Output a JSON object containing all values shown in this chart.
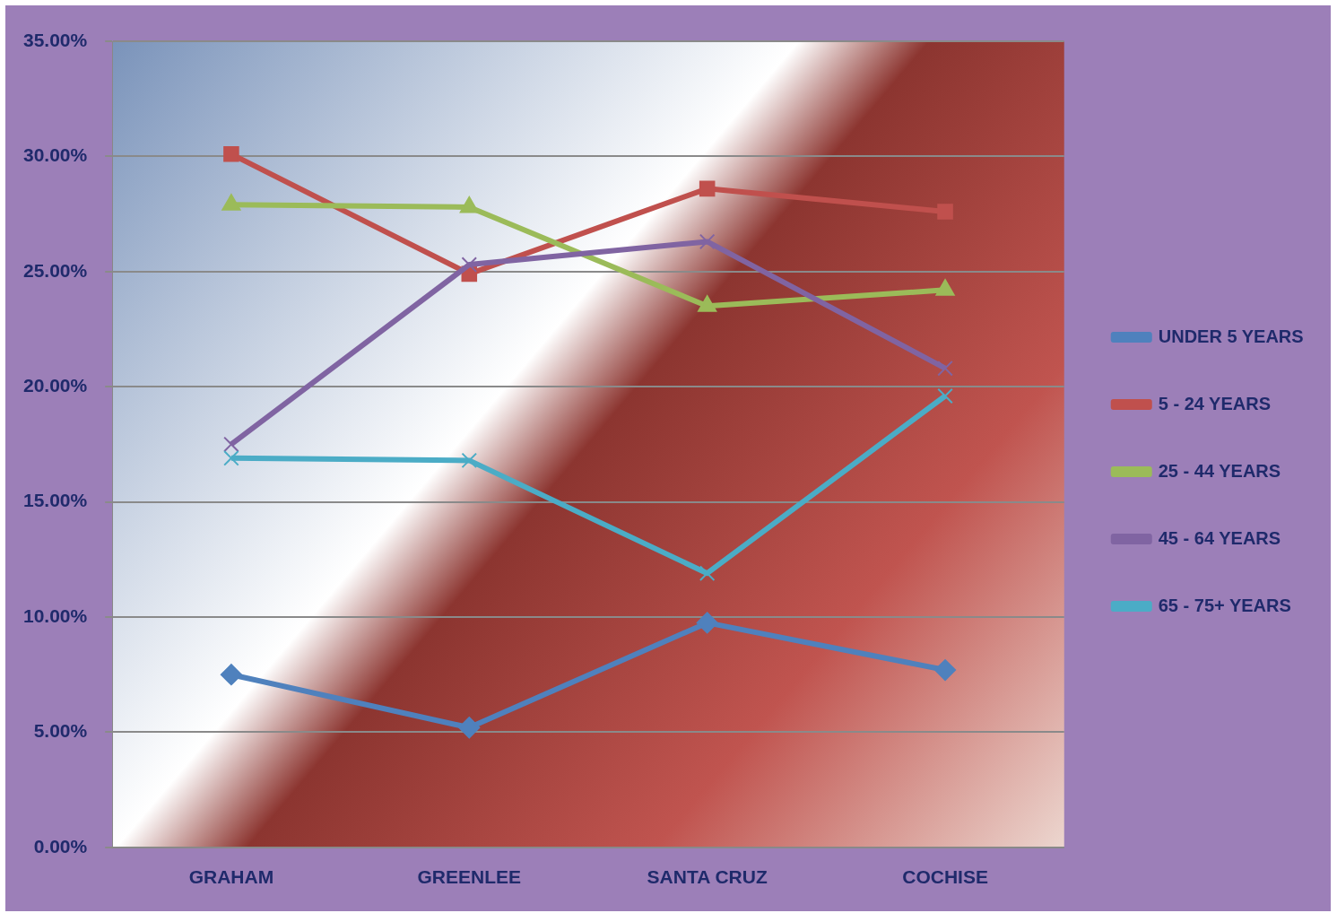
{
  "chart_data": {
    "type": "line",
    "categories": [
      "GRAHAM",
      "GREENLEE",
      "SANTA CRUZ",
      "COCHISE"
    ],
    "series": [
      {
        "name": "UNDER 5 YEARS",
        "color": "#4f81bd",
        "marker": "diamond",
        "values": [
          7.5,
          5.2,
          9.75,
          7.7
        ]
      },
      {
        "name": "5 - 24 YEARS",
        "color": "#c0504d",
        "marker": "square",
        "values": [
          30.1,
          24.9,
          28.6,
          27.6
        ]
      },
      {
        "name": "25 - 44 YEARS",
        "color": "#9bbb59",
        "marker": "triangle",
        "values": [
          27.9,
          27.8,
          23.5,
          24.2
        ]
      },
      {
        "name": "45 - 64 YEARS",
        "color": "#8064a2",
        "marker": "cross",
        "values": [
          17.5,
          25.3,
          26.3,
          20.8
        ]
      },
      {
        "name": "65 - 75+ YEARS",
        "color": "#4bacc6",
        "marker": "cross",
        "values": [
          16.9,
          16.8,
          11.9,
          19.6
        ]
      }
    ],
    "ylim": [
      0,
      35
    ],
    "yticks": [
      {
        "value": 0,
        "label": "0.00%"
      },
      {
        "value": 5,
        "label": "5.00%"
      },
      {
        "value": 10,
        "label": "10.00%"
      },
      {
        "value": 15,
        "label": "15.00%"
      },
      {
        "value": 20,
        "label": "20.00%"
      },
      {
        "value": 25,
        "label": "25.00%"
      },
      {
        "value": 30,
        "label": "30.00%"
      },
      {
        "value": 35,
        "label": "35.00%"
      }
    ],
    "grid": "y",
    "legend": "right",
    "line_style": "solid"
  }
}
